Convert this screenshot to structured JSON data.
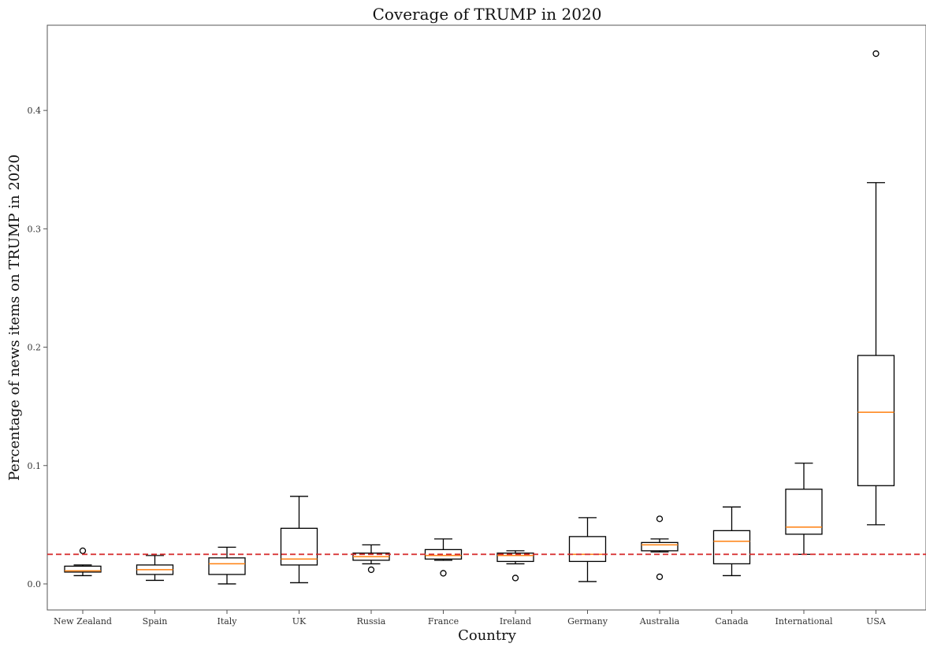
{
  "chart_data": {
    "type": "box",
    "title": "Coverage of TRUMP in 2020",
    "xlabel": "Country",
    "ylabel": "Percentage of news items on TRUMP in 2020",
    "ylim": [
      -0.022,
      0.472
    ],
    "y_ticks": [
      0.0,
      0.1,
      0.2,
      0.3,
      0.4
    ],
    "y_tick_labels": [
      "0.0",
      "0.1",
      "0.2",
      "0.3",
      "0.4"
    ],
    "grid": false,
    "reference_line": {
      "y": 0.025,
      "style": "dashed",
      "color": "#d62728"
    },
    "box_color": "#000000",
    "median_color": "#ff7f0e",
    "categories": [
      "New Zealand",
      "Spain",
      "Italy",
      "UK",
      "Russia",
      "France",
      "Ireland",
      "Germany",
      "Australia",
      "Canada",
      "International",
      "USA"
    ],
    "boxes": [
      {
        "category": "New Zealand",
        "whisker_low": 0.007,
        "q1": 0.01,
        "median": 0.011,
        "q3": 0.015,
        "whisker_high": 0.016,
        "outliers": [
          0.028
        ]
      },
      {
        "category": "Spain",
        "whisker_low": 0.003,
        "q1": 0.008,
        "median": 0.012,
        "q3": 0.016,
        "whisker_high": 0.024,
        "outliers": []
      },
      {
        "category": "Italy",
        "whisker_low": 0.0,
        "q1": 0.008,
        "median": 0.017,
        "q3": 0.022,
        "whisker_high": 0.031,
        "outliers": []
      },
      {
        "category": "UK",
        "whisker_low": 0.001,
        "q1": 0.016,
        "median": 0.021,
        "q3": 0.047,
        "whisker_high": 0.074,
        "outliers": []
      },
      {
        "category": "Russia",
        "whisker_low": 0.017,
        "q1": 0.02,
        "median": 0.023,
        "q3": 0.026,
        "whisker_high": 0.033,
        "outliers": [
          0.012
        ]
      },
      {
        "category": "France",
        "whisker_low": 0.02,
        "q1": 0.021,
        "median": 0.024,
        "q3": 0.029,
        "whisker_high": 0.038,
        "outliers": [
          0.009
        ]
      },
      {
        "category": "Ireland",
        "whisker_low": 0.017,
        "q1": 0.019,
        "median": 0.024,
        "q3": 0.026,
        "whisker_high": 0.028,
        "outliers": [
          0.005
        ]
      },
      {
        "category": "Germany",
        "whisker_low": 0.002,
        "q1": 0.019,
        "median": 0.025,
        "q3": 0.04,
        "whisker_high": 0.056,
        "outliers": []
      },
      {
        "category": "Australia",
        "whisker_low": 0.027,
        "q1": 0.028,
        "median": 0.033,
        "q3": 0.035,
        "whisker_high": 0.038,
        "outliers": [
          0.055,
          0.006
        ]
      },
      {
        "category": "Canada",
        "whisker_low": 0.007,
        "q1": 0.017,
        "median": 0.036,
        "q3": 0.045,
        "whisker_high": 0.065,
        "outliers": []
      },
      {
        "category": "International",
        "whisker_low": 0.025,
        "q1": 0.042,
        "median": 0.048,
        "q3": 0.08,
        "whisker_high": 0.102,
        "outliers": []
      },
      {
        "category": "USA",
        "whisker_low": 0.05,
        "q1": 0.083,
        "median": 0.145,
        "q3": 0.193,
        "whisker_high": 0.339,
        "outliers": [
          0.448
        ]
      }
    ]
  }
}
